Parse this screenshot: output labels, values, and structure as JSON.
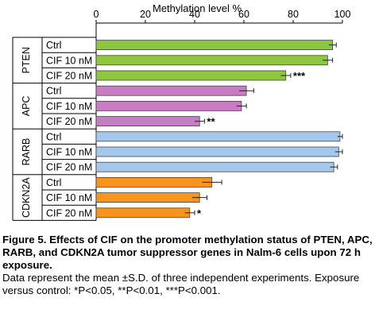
{
  "chart_data": {
    "type": "bar",
    "orientation": "horizontal",
    "axis_title": "Methylation level %",
    "axis_position": "top",
    "xlim": [
      0,
      100
    ],
    "ticks": [
      "0",
      "20",
      "40",
      "60",
      "80",
      "100"
    ],
    "grid": false,
    "groups": [
      {
        "name": "PTEN",
        "color": "#8dc63f",
        "bars": [
          {
            "label": "Ctrl",
            "value": 96,
            "error": 1.5,
            "sig": ""
          },
          {
            "label": "CIF 10 nM",
            "value": 94,
            "error": 2,
            "sig": ""
          },
          {
            "label": "CIF 20 nM",
            "value": 77,
            "error": 2,
            "sig": "***"
          }
        ]
      },
      {
        "name": "APC",
        "color": "#c77cc4",
        "bars": [
          {
            "label": "Ctrl",
            "value": 61,
            "error": 3,
            "sig": ""
          },
          {
            "label": "CIF 10 nM",
            "value": 59,
            "error": 2,
            "sig": ""
          },
          {
            "label": "CIF 20 nM",
            "value": 42,
            "error": 2,
            "sig": "**"
          }
        ]
      },
      {
        "name": "RARB",
        "color": "#a4c8ec",
        "bars": [
          {
            "label": "Ctrl",
            "value": 99,
            "error": 1,
            "sig": ""
          },
          {
            "label": "CIF 10 nM",
            "value": 98.5,
            "error": 1.5,
            "sig": ""
          },
          {
            "label": "CIF 20 nM",
            "value": 96.5,
            "error": 1.5,
            "sig": ""
          }
        ]
      },
      {
        "name": "CDKN2A",
        "color": "#f7941d",
        "bars": [
          {
            "label": "Ctrl",
            "value": 47,
            "error": 4,
            "sig": ""
          },
          {
            "label": "CIF 10 nM",
            "value": 42,
            "error": 3,
            "sig": ""
          },
          {
            "label": "CIF 20 nM",
            "value": 38,
            "error": 2,
            "sig": "*"
          }
        ]
      }
    ]
  },
  "caption": {
    "title": "Figure 5. Effects of CIF on the promoter methylation status of PTEN, APC, RARB, and CDKN2A tumor suppressor genes in Nalm-6 cells upon 72 h exposure.",
    "body": "Data represent the mean ±S.D. of three independent experiments. Exposure versus control: *P<0.05, **P<0.01, ***P<0.001."
  }
}
